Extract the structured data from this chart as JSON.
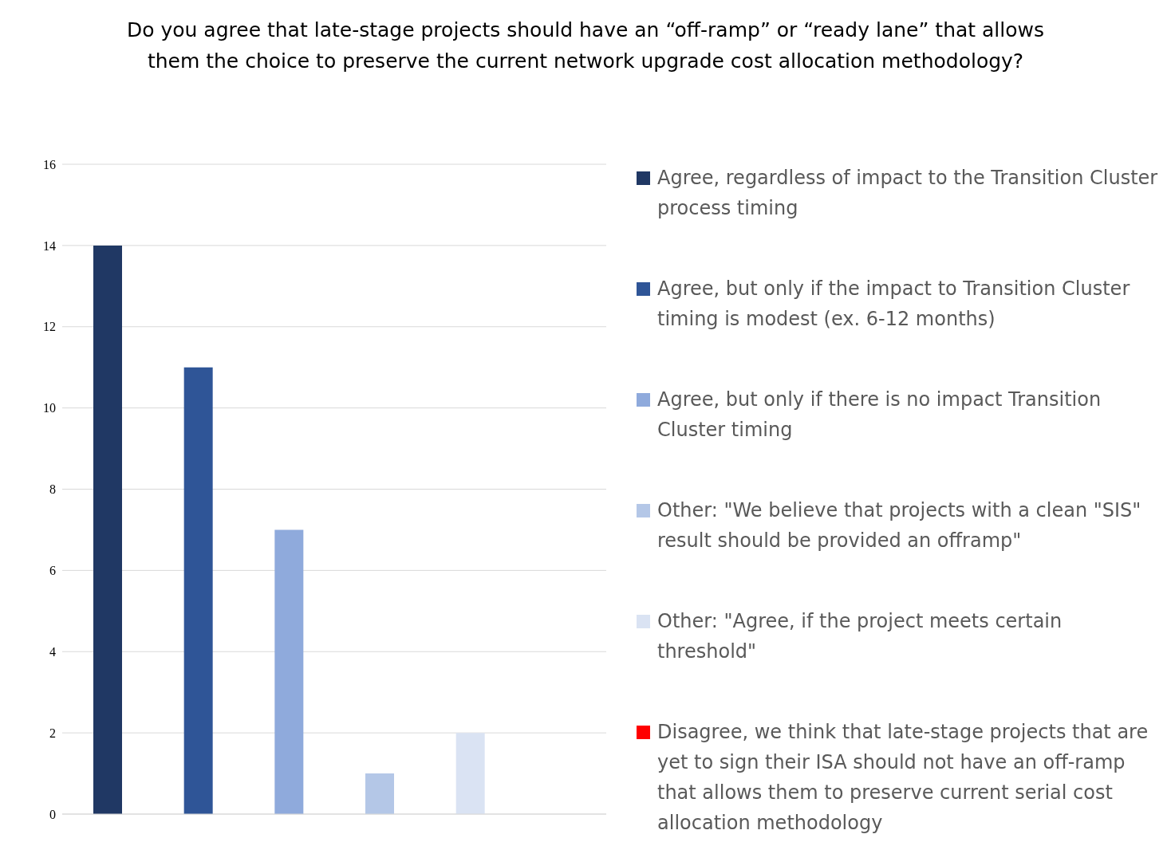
{
  "chart_data": {
    "type": "bar",
    "title": "Do you agree that late-stage projects should have an “off-ramp” or “ready lane” that allows them the choice to preserve the current network upgrade cost allocation methodology?",
    "categories": [
      null,
      null,
      null,
      null,
      null,
      null
    ],
    "series": [
      {
        "name": "Agree, regardless of impact to the Transition Cluster process timing",
        "color": "#203864",
        "values": [
          14,
          null,
          null,
          null,
          null,
          null
        ]
      },
      {
        "name": "Agree, but only if the impact to Transition Cluster timing is modest (ex. 6-12 months)",
        "color": "#2f5597",
        "values": [
          null,
          11,
          null,
          null,
          null,
          null
        ]
      },
      {
        "name": "Agree, but only if there is no impact Transition Cluster timing",
        "color": "#8faadc",
        "values": [
          null,
          null,
          7,
          null,
          null,
          null
        ]
      },
      {
        "name": "Other: \"We believe that projects with a clean \"SIS\" result should be provided an offramp\"",
        "color": "#b4c7e7",
        "values": [
          null,
          null,
          null,
          1,
          null,
          null
        ]
      },
      {
        "name": "Other: \"Agree, if the project meets certain threshold\"",
        "color": "#dae3f3",
        "values": [
          null,
          null,
          null,
          null,
          2,
          null
        ]
      },
      {
        "name": "Disagree, we think that late-stage projects that are yet to sign their ISA should not have an off-ramp that allows them to preserve current serial cost allocation methodology",
        "color": "#ff0000",
        "values": [
          null,
          null,
          null,
          null,
          null,
          0
        ]
      }
    ],
    "ylim": [
      0,
      16
    ],
    "yticks": [
      0,
      2,
      4,
      6,
      8,
      10,
      12,
      14,
      16
    ],
    "grid": "y",
    "legend": "right",
    "tick_labels": "y"
  }
}
